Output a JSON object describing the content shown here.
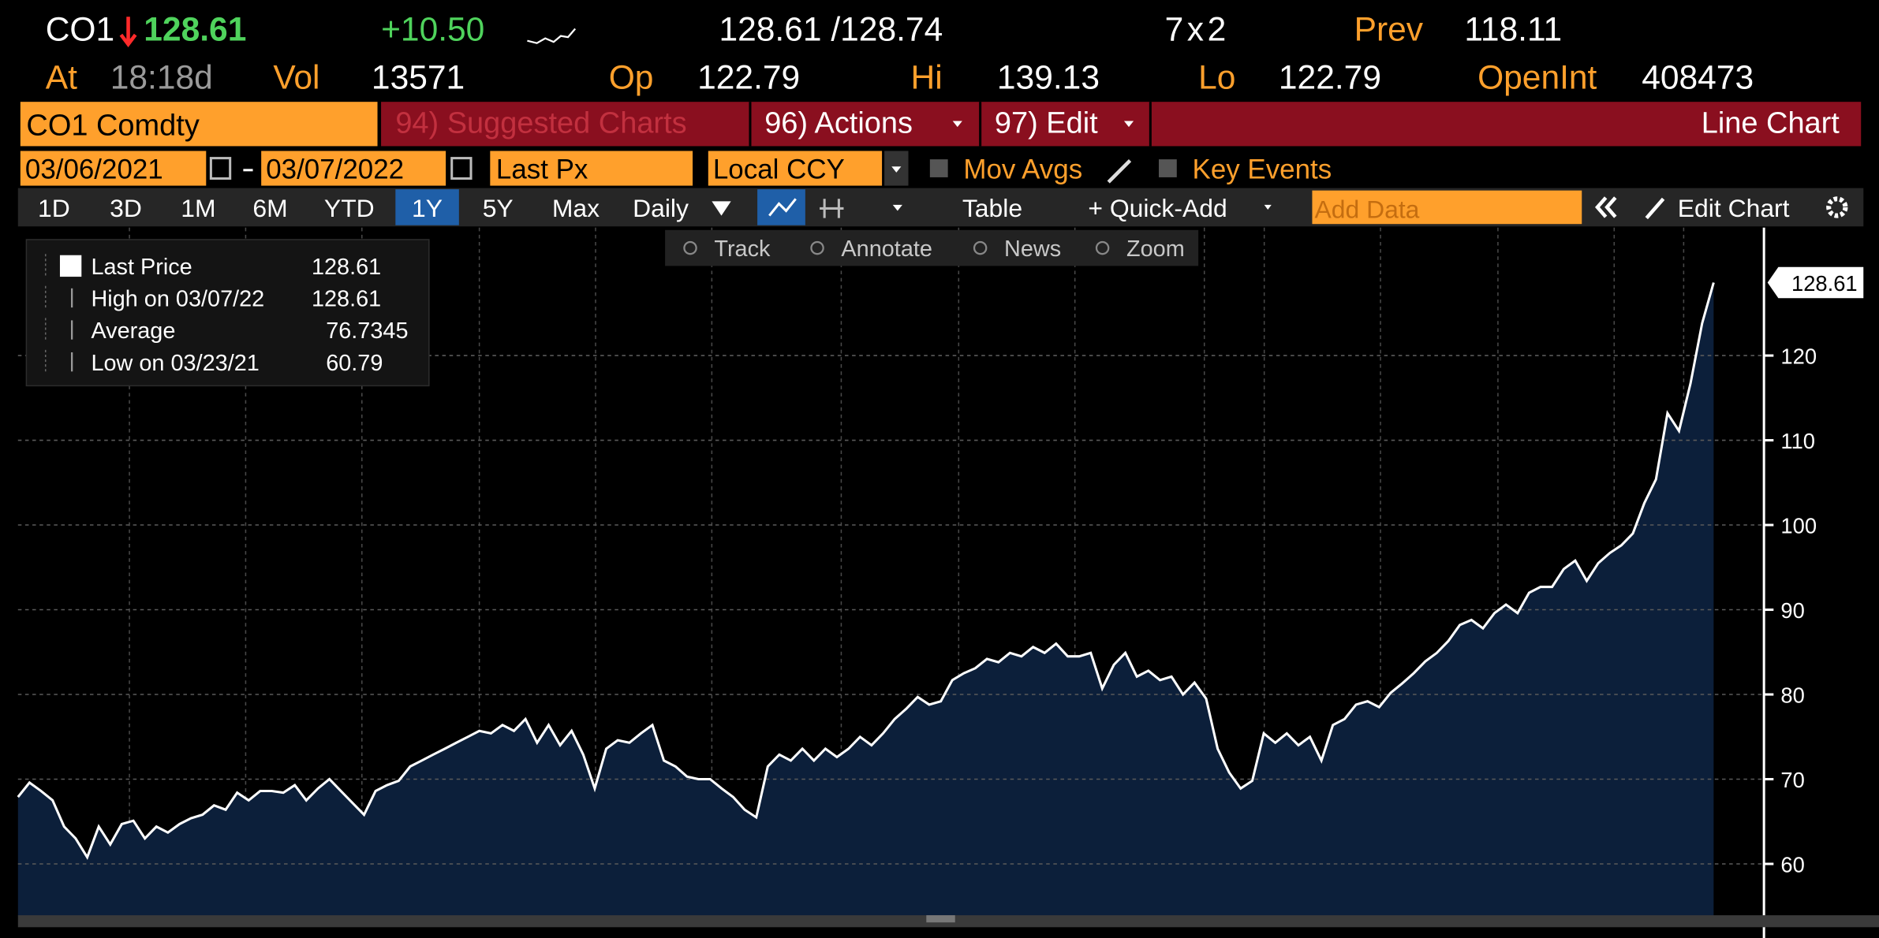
{
  "header": {
    "ticker": "CO1",
    "last": "128.61",
    "change": "+10.50",
    "bid_ask": "128.61 /128.74",
    "size": "7x2",
    "prev_label": "Prev",
    "prev": "118.11",
    "at_label": "At",
    "time": "18:18d",
    "vol_label": "Vol",
    "vol": "13571",
    "op_label": "Op",
    "op": "122.79",
    "hi_label": "Hi",
    "hi": "139.13",
    "lo_label": "Lo",
    "lo": "122.79",
    "oi_label": "OpenInt",
    "oi": "408473"
  },
  "toolbar": {
    "security": "CO1 Comdty",
    "suggested": "94) Suggested Charts",
    "actions": "96) Actions",
    "edit": "97) Edit",
    "chart_type": "Line Chart",
    "start_date": "03/06/2021",
    "end_date": "03/07/2022",
    "field": "Last Px",
    "currency": "Local CCY",
    "mov_avgs": "Mov Avgs",
    "key_events": "Key Events",
    "periods": [
      "1D",
      "3D",
      "1M",
      "6M",
      "YTD",
      "1Y",
      "5Y",
      "Max"
    ],
    "frequency": "Daily",
    "table": "Table",
    "quick_add": "+ Quick-Add",
    "add_data": "Add Data",
    "edit_chart": "Edit Chart",
    "tools": [
      "Track",
      "Annotate",
      "News",
      "Zoom"
    ]
  },
  "legend": {
    "rows": [
      [
        "Last Price",
        "128.61"
      ],
      [
        "High on 03/07/22",
        "128.61"
      ],
      [
        "Average",
        "76.7345"
      ],
      [
        "Low on 03/23/21",
        "60.79"
      ]
    ]
  },
  "chart_data": {
    "type": "line",
    "color": "#ffffff",
    "fill": "#0c1f3a",
    "grid": true,
    "values": [
      67.9,
      69.6,
      68.6,
      67.5,
      64.4,
      63,
      60.79,
      64.4,
      62.3,
      64.7,
      65.1,
      63,
      64.4,
      63.7,
      64.7,
      65.4,
      65.8,
      66.9,
      66.4,
      68.4,
      67.5,
      68.6,
      68.6,
      68.4,
      69.3,
      67.5,
      68.9,
      70,
      68.6,
      67.2,
      65.8,
      68.6,
      69.3,
      69.8,
      71.5,
      72.2,
      72.9,
      73.6,
      74.3,
      75,
      75.7,
      75.4,
      76.4,
      75.7,
      77.1,
      74.3,
      76.4,
      74,
      75.7,
      72.9,
      68.9,
      73.6,
      74.6,
      74.3,
      75.4,
      76.4,
      72.2,
      71.5,
      70.3,
      70,
      70,
      68.9,
      67.9,
      66.4,
      65.5,
      71.5,
      72.9,
      72.2,
      73.6,
      72.2,
      73.6,
      72.6,
      73.6,
      75,
      74,
      75.4,
      77.1,
      78.3,
      79.7,
      78.8,
      79.2,
      81.7,
      82.5,
      83.1,
      84.2,
      83.8,
      84.9,
      84.5,
      85.6,
      84.9,
      86,
      84.5,
      84.5,
      84.9,
      80.7,
      83.5,
      84.9,
      82.1,
      82.8,
      81.7,
      82.1,
      80,
      81.4,
      79.5,
      73.6,
      70.8,
      68.9,
      69.8,
      75.4,
      74.3,
      75.4,
      74,
      75,
      72.2,
      76.4,
      77.1,
      78.8,
      79.2,
      78.5,
      80.2,
      81.3,
      82.5,
      83.9,
      84.9,
      86.3,
      88.2,
      88.8,
      87.8,
      89.6,
      90.6,
      89.6,
      92,
      92.7,
      92.7,
      94.8,
      95.8,
      93.4,
      95.5,
      96.7,
      97.6,
      99,
      102.6,
      105.4,
      113.2,
      111.1,
      116.7,
      123.8,
      128.61
    ],
    "ylim": [
      53.8,
      135.1
    ],
    "yticks": [
      60,
      70,
      80,
      90,
      100,
      110,
      120
    ]
  }
}
